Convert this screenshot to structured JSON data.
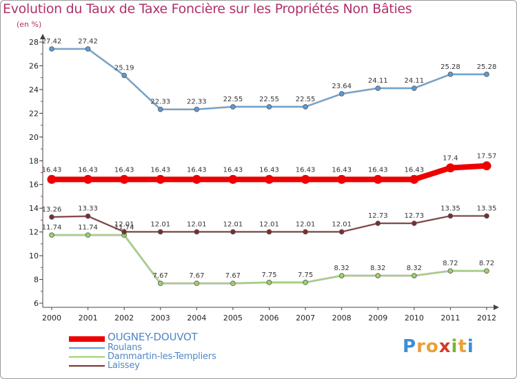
{
  "title": "Evolution du Taux de Taxe Foncière sur les Propriétés Non Bâties",
  "unit_label": "(en %)",
  "brand": {
    "letters": [
      "P",
      "r",
      "o",
      "x",
      "i",
      "t",
      "i"
    ],
    "colors": [
      "#3b8fd6",
      "#e8a13a",
      "#e8a13a",
      "#d43a2a",
      "#7ab52f",
      "#e8a13a",
      "#3b8fd6"
    ]
  },
  "chart_data": {
    "type": "line",
    "title": "Evolution du Taux de Taxe Foncière sur les Propriétés Non Bâties",
    "ylabel": "(en %)",
    "xlabel": "",
    "x": [
      "2000",
      "2001",
      "2002",
      "2003",
      "2004",
      "2005",
      "2006",
      "2007",
      "2008",
      "2009",
      "2010",
      "2011",
      "2012"
    ],
    "ylim": [
      6,
      28
    ],
    "yticks": [
      "6",
      "8",
      "10",
      "12",
      "14",
      "16",
      "18",
      "20",
      "22",
      "24",
      "26",
      "28"
    ],
    "grid": false,
    "legend_position": "bottom-left",
    "series": [
      {
        "name": "OUGNEY-DOUVOT",
        "color": "#ee0000",
        "emphasis": true,
        "values": [
          16.43,
          16.43,
          16.43,
          16.43,
          16.43,
          16.43,
          16.43,
          16.43,
          16.43,
          16.43,
          16.43,
          17.4,
          17.57
        ],
        "labels": [
          "16.43",
          "16.43",
          "16.43",
          "16.43",
          "16.43",
          "16.43",
          "16.43",
          "16.43",
          "16.43",
          "16.43",
          "16.43",
          "17.4",
          "17.57"
        ]
      },
      {
        "name": "Roulans",
        "color": "#5b9bd5",
        "emphasis": false,
        "values": [
          27.42,
          27.42,
          25.19,
          22.33,
          22.33,
          22.55,
          22.55,
          22.55,
          23.64,
          24.11,
          24.11,
          25.28,
          25.28
        ],
        "labels": [
          "27.42",
          "27.42",
          "25.19",
          "22.33",
          "22.33",
          "22.55",
          "22.55",
          "22.55",
          "23.64",
          "24.11",
          "24.11",
          "25.28",
          "25.28"
        ]
      },
      {
        "name": "Dammartin-les-Templiers",
        "color": "#9bd36a",
        "emphasis": false,
        "values": [
          11.74,
          11.74,
          11.74,
          7.67,
          7.67,
          7.67,
          7.75,
          7.75,
          8.32,
          8.32,
          8.32,
          8.72,
          8.72
        ],
        "labels": [
          "11.74",
          "11.74",
          "11.74",
          "7.67",
          "7.67",
          "7.67",
          "7.75",
          "7.75",
          "8.32",
          "8.32",
          "8.32",
          "8.72",
          "8.72"
        ]
      },
      {
        "name": "Laissey",
        "color": "#7b2d2d",
        "emphasis": false,
        "values": [
          13.26,
          13.33,
          12.01,
          12.01,
          12.01,
          12.01,
          12.01,
          12.01,
          12.01,
          12.73,
          12.73,
          13.35,
          13.35
        ],
        "labels": [
          "13.26",
          "13.33",
          "12.01",
          "12.01",
          "12.01",
          "12.01",
          "12.01",
          "12.01",
          "12.01",
          "12.73",
          "12.73",
          "13.35",
          "13.35"
        ]
      }
    ]
  }
}
